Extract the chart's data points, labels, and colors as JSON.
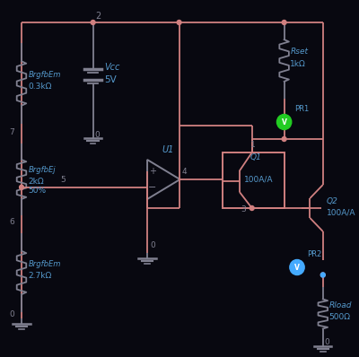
{
  "bg_color": "#080810",
  "wire_color": "#d08080",
  "component_color": "#808090",
  "label_color": "#5599cc",
  "green_probe_color": "#22cc22",
  "blue_probe_color": "#44aaff",
  "vcc_label": "Vcc",
  "vcc_value": "5V",
  "r1_label": "BrgfbEm",
  "r1_value": "0.3kΩ",
  "r2_label": "BrgfbEj",
  "r2_value": "2kΩ",
  "r2_extra": "50%",
  "r3_label": "BrgfbEm",
  "r3_value": "2.7kΩ",
  "rset_label": "Rset",
  "rset_value": "1kΩ",
  "rload_label": "Rload",
  "rload_value": "500Ω",
  "u1_label": "U1",
  "q1_label": "Q1",
  "q1_value": "100A/A",
  "q2_label": "Q2",
  "q2_value": "100A/A",
  "pr1_label": "PR1",
  "pr2_label": "PR2",
  "n2": "2",
  "n7": "7",
  "n5": "5",
  "n6": "6",
  "n0": "0",
  "n1": "1",
  "n3": "3",
  "n4": "4",
  "figw": 4.0,
  "figh": 3.98,
  "dpi": 100,
  "xlim": [
    0,
    400
  ],
  "ylim": [
    0,
    398
  ]
}
